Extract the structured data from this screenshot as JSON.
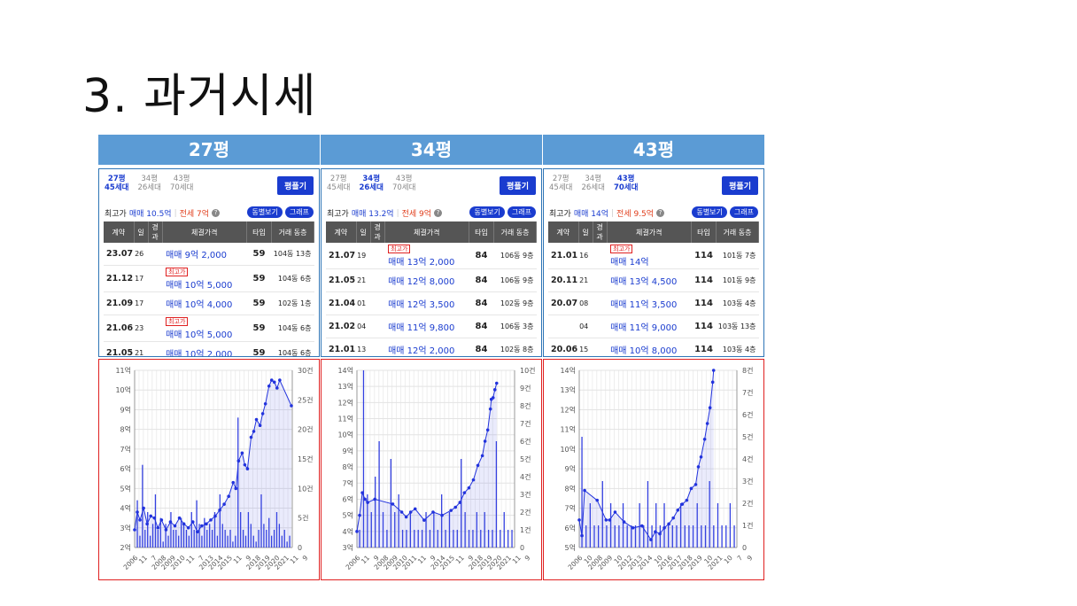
{
  "slide_title": "3. 과거시세",
  "columns": [
    {
      "header": "27평",
      "sizes": [
        {
          "name": "27평",
          "units": "45세대",
          "active": true
        },
        {
          "name": "34평",
          "units": "26세대",
          "active": false
        },
        {
          "name": "43평",
          "units": "70세대",
          "active": false
        }
      ],
      "pyeong_btn": "평플기",
      "max_label": "최고가",
      "max_sale": "매매 10.5억",
      "max_jeonse": "전세 7억",
      "q": "?",
      "btn_dong": "동별보기",
      "btn_graph": "그래프",
      "table_headers": [
        "계약",
        "일",
        "경과",
        "체결가격",
        "타입",
        "거래 동층"
      ],
      "rows": [
        {
          "ym": "23.07",
          "day": "26",
          "badge": "",
          "price": "매매 9억 2,000",
          "type": "59",
          "dong": "104동",
          "floor": "13층"
        },
        {
          "ym": "21.12",
          "day": "17",
          "badge": "최고가",
          "price": "매매 10억 5,000",
          "type": "59",
          "dong": "104동",
          "floor": "6층"
        },
        {
          "ym": "21.09",
          "day": "17",
          "badge": "",
          "price": "매매 10억 4,000",
          "type": "59",
          "dong": "102동",
          "floor": "1층"
        },
        {
          "ym": "21.06",
          "day": "23",
          "badge": "최고가",
          "price": "매매 10억 5,000",
          "type": "59",
          "dong": "104동",
          "floor": "6층"
        },
        {
          "ym": "21.05",
          "day": "21",
          "badge": "",
          "price": "매매 10억 2,000",
          "type": "59",
          "dong": "104동",
          "floor": "6층"
        }
      ]
    },
    {
      "header": "34평",
      "sizes": [
        {
          "name": "27평",
          "units": "45세대",
          "active": false
        },
        {
          "name": "34평",
          "units": "26세대",
          "active": true
        },
        {
          "name": "43평",
          "units": "70세대",
          "active": false
        }
      ],
      "pyeong_btn": "평플기",
      "max_label": "최고가",
      "max_sale": "매매 13.2억",
      "max_jeonse": "전세 9억",
      "q": "?",
      "btn_dong": "동별보기",
      "btn_graph": "그래프",
      "table_headers": [
        "계약",
        "일",
        "경과",
        "체결가격",
        "타입",
        "거래 동층"
      ],
      "rows": [
        {
          "ym": "21.07",
          "day": "19",
          "badge": "최고가",
          "price": "매매 13억 2,000",
          "type": "84",
          "dong": "106동",
          "floor": "9층"
        },
        {
          "ym": "21.05",
          "day": "21",
          "badge": "",
          "price": "매매 12억 8,000",
          "type": "84",
          "dong": "106동",
          "floor": "9층"
        },
        {
          "ym": "21.04",
          "day": "01",
          "badge": "",
          "price": "매매 12억 3,500",
          "type": "84",
          "dong": "102동",
          "floor": "9층"
        },
        {
          "ym": "21.02",
          "day": "04",
          "badge": "",
          "price": "매매 11억 9,800",
          "type": "84",
          "dong": "106동",
          "floor": "3층"
        },
        {
          "ym": "21.01",
          "day": "13",
          "badge": "",
          "price": "매매 12억 2,000",
          "type": "84",
          "dong": "102동",
          "floor": "8층"
        }
      ]
    },
    {
      "header": "43평",
      "sizes": [
        {
          "name": "27평",
          "units": "45세대",
          "active": false
        },
        {
          "name": "34평",
          "units": "26세대",
          "active": false
        },
        {
          "name": "43평",
          "units": "70세대",
          "active": true
        }
      ],
      "pyeong_btn": "평플기",
      "max_label": "최고가",
      "max_sale": "매매 14억",
      "max_jeonse": "전세 9.5억",
      "q": "?",
      "btn_dong": "동별보기",
      "btn_graph": "그래프",
      "table_headers": [
        "계약",
        "일",
        "경과",
        "체결가격",
        "타입",
        "거래 동층"
      ],
      "rows": [
        {
          "ym": "21.01",
          "day": "16",
          "badge": "최고가",
          "price": "매매 14억",
          "type": "114",
          "dong": "101동",
          "floor": "7층"
        },
        {
          "ym": "20.11",
          "day": "21",
          "badge": "",
          "price": "매매 13억 4,500",
          "type": "114",
          "dong": "101동",
          "floor": "9층"
        },
        {
          "ym": "20.07",
          "day": "08",
          "badge": "",
          "price": "매매 11억 3,500",
          "type": "114",
          "dong": "103동",
          "floor": "4층"
        },
        {
          "ym": "",
          "day": "04",
          "badge": "",
          "price": "매매 11억 9,000",
          "type": "114",
          "dong": "103동",
          "floor": "13층"
        },
        {
          "ym": "20.06",
          "day": "15",
          "badge": "",
          "price": "매매 10억 8,000",
          "type": "114",
          "dong": "103동",
          "floor": "4층"
        }
      ]
    }
  ],
  "chart_data": [
    {
      "type": "line",
      "y_left_ticks": [
        "2억",
        "3억",
        "4억",
        "5억",
        "6억",
        "7억",
        "8억",
        "9억",
        "10억",
        "11억"
      ],
      "y_left_range": [
        2,
        11
      ],
      "y_right_ticks": [
        "0",
        "5건",
        "10건",
        "15건",
        "20건",
        "25건",
        "30건"
      ],
      "y_right_range": [
        0,
        30
      ],
      "x_tick_labels": [
        "2006",
        "11",
        "7",
        "2008",
        "2009",
        "2010",
        "11",
        "7",
        "2013",
        "2014",
        "2015",
        "11",
        "9",
        "2018",
        "2019",
        "2020",
        "2021",
        "11",
        "9"
      ],
      "x_range": [
        2006,
        2023.6
      ],
      "series": [
        {
          "x": [
            2006.0,
            2006.3,
            2006.6,
            2007.0,
            2007.4,
            2007.8,
            2008.2,
            2008.6,
            2009.0,
            2009.5,
            2010.0,
            2010.5,
            2011.0,
            2011.5,
            2012.0,
            2012.5,
            2013.0,
            2013.5,
            2014.0,
            2014.5,
            2015.0,
            2015.5,
            2016.0,
            2016.5,
            2017.0,
            2017.3,
            2017.6,
            2018.0,
            2018.3,
            2018.6,
            2019.0,
            2019.3,
            2019.6,
            2020.0,
            2020.3,
            2020.6,
            2021.0,
            2021.3,
            2021.6,
            2021.9,
            2022.2,
            2023.5
          ],
          "values": [
            2.9,
            3.8,
            3.4,
            4.0,
            3.2,
            3.6,
            3.5,
            3.0,
            3.4,
            2.9,
            3.3,
            3.1,
            3.5,
            3.2,
            3.0,
            3.3,
            2.8,
            3.1,
            3.2,
            3.4,
            3.6,
            3.9,
            4.2,
            4.6,
            5.3,
            5.0,
            6.4,
            6.8,
            6.2,
            6.0,
            7.6,
            7.9,
            8.5,
            8.2,
            8.8,
            9.3,
            10.2,
            10.5,
            10.4,
            10.1,
            10.5,
            9.2
          ]
        }
      ],
      "bars": [
        8,
        2,
        14,
        3,
        6,
        2,
        4,
        9,
        3,
        5,
        1,
        4,
        2,
        6,
        3,
        3,
        2,
        5,
        4,
        3,
        2,
        6,
        3,
        8,
        4,
        2,
        5,
        3,
        4,
        3,
        6,
        2,
        9,
        4,
        3,
        2,
        3,
        1,
        2,
        22,
        6,
        3,
        2,
        6,
        4,
        2,
        1,
        3,
        9,
        4,
        3,
        5,
        2,
        3,
        6,
        4,
        2,
        3,
        1,
        2
      ]
    },
    {
      "type": "line",
      "y_left_ticks": [
        "3억",
        "4억",
        "5억",
        "6억",
        "7억",
        "8억",
        "9억",
        "10억",
        "11억",
        "12억",
        "13억",
        "14억"
      ],
      "y_left_range": [
        3,
        14
      ],
      "y_right_ticks": [
        "0",
        "1건",
        "2건",
        "3건",
        "4건",
        "5건",
        "6건",
        "7건",
        "8건",
        "9건",
        "10건"
      ],
      "y_right_range": [
        0,
        10
      ],
      "x_tick_labels": [
        "2006",
        "11",
        "9",
        "2008",
        "2009",
        "2010",
        "2011",
        "11",
        "9",
        "2014",
        "2015",
        "11",
        "9",
        "2018",
        "2019",
        "2020",
        "2021",
        "11",
        "9"
      ],
      "x_range": [
        2006,
        2023.6
      ],
      "series": [
        {
          "x": [
            2006.0,
            2006.3,
            2006.6,
            2006.9,
            2007.2,
            2008.0,
            2010.0,
            2011.0,
            2011.5,
            2012.0,
            2012.5,
            2013.5,
            2014.5,
            2015.5,
            2016.5,
            2017.0,
            2017.5,
            2018.0,
            2018.5,
            2019.0,
            2019.5,
            2020.0,
            2020.3,
            2020.6,
            2020.9,
            2021.0,
            2021.2,
            2021.4,
            2021.6
          ],
          "values": [
            4.0,
            5.0,
            6.4,
            6.0,
            5.8,
            6.0,
            5.7,
            5.2,
            4.9,
            5.2,
            5.4,
            4.7,
            5.2,
            5.0,
            5.3,
            5.5,
            5.8,
            6.4,
            6.7,
            7.2,
            8.1,
            8.7,
            9.6,
            10.3,
            11.6,
            12.2,
            12.3,
            12.8,
            13.2
          ]
        }
      ],
      "bars": [
        1,
        10,
        3,
        2,
        4,
        6,
        2,
        1,
        5,
        2,
        3,
        1,
        1,
        2,
        1,
        1,
        1,
        2,
        1,
        2,
        1,
        3,
        1,
        2,
        1,
        1,
        5,
        2,
        1,
        1,
        2,
        1,
        2,
        1,
        1,
        6,
        1,
        2,
        1,
        1
      ]
    },
    {
      "type": "line",
      "y_left_ticks": [
        "5억",
        "6억",
        "7억",
        "8억",
        "9억",
        "10억",
        "11억",
        "12억",
        "13억",
        "14억"
      ],
      "y_left_range": [
        5,
        14
      ],
      "y_right_ticks": [
        "0",
        "1건",
        "2건",
        "3건",
        "4건",
        "5건",
        "6건",
        "7건",
        "8건"
      ],
      "y_right_range": [
        0,
        8
      ],
      "x_tick_labels": [
        "2006",
        "10",
        "2008",
        "2009",
        "10",
        "2012",
        "2013",
        "2014",
        "10",
        "2016",
        "2017",
        "2018",
        "2019",
        "10",
        "2021",
        "10",
        "7",
        "9"
      ],
      "x_range": [
        2006,
        2023.6
      ],
      "series": [
        {
          "x": [
            2006.0,
            2006.3,
            2006.6,
            2008.0,
            2009.0,
            2009.4,
            2010.0,
            2011.0,
            2012.0,
            2013.0,
            2014.0,
            2014.5,
            2015.0,
            2015.5,
            2016.0,
            2016.5,
            2017.0,
            2017.5,
            2018.0,
            2018.5,
            2019.0,
            2019.3,
            2019.6,
            2020.0,
            2020.3,
            2020.6,
            2020.9,
            2021.0
          ],
          "values": [
            6.4,
            5.6,
            7.9,
            7.4,
            6.4,
            6.4,
            6.8,
            6.3,
            6.0,
            6.1,
            5.4,
            5.8,
            5.7,
            6.0,
            6.2,
            6.5,
            6.9,
            7.2,
            7.4,
            8.0,
            8.2,
            9.1,
            9.6,
            10.5,
            11.3,
            12.1,
            13.4,
            14.0
          ]
        }
      ],
      "bars": [
        5,
        1,
        2,
        1,
        1,
        3,
        1,
        2,
        1,
        1,
        2,
        1,
        1,
        1,
        2,
        1,
        3,
        1,
        2,
        1,
        2,
        1,
        1,
        1,
        2,
        1,
        1,
        1,
        2,
        1,
        1,
        3,
        1,
        2,
        1,
        1,
        2,
        1
      ]
    }
  ]
}
